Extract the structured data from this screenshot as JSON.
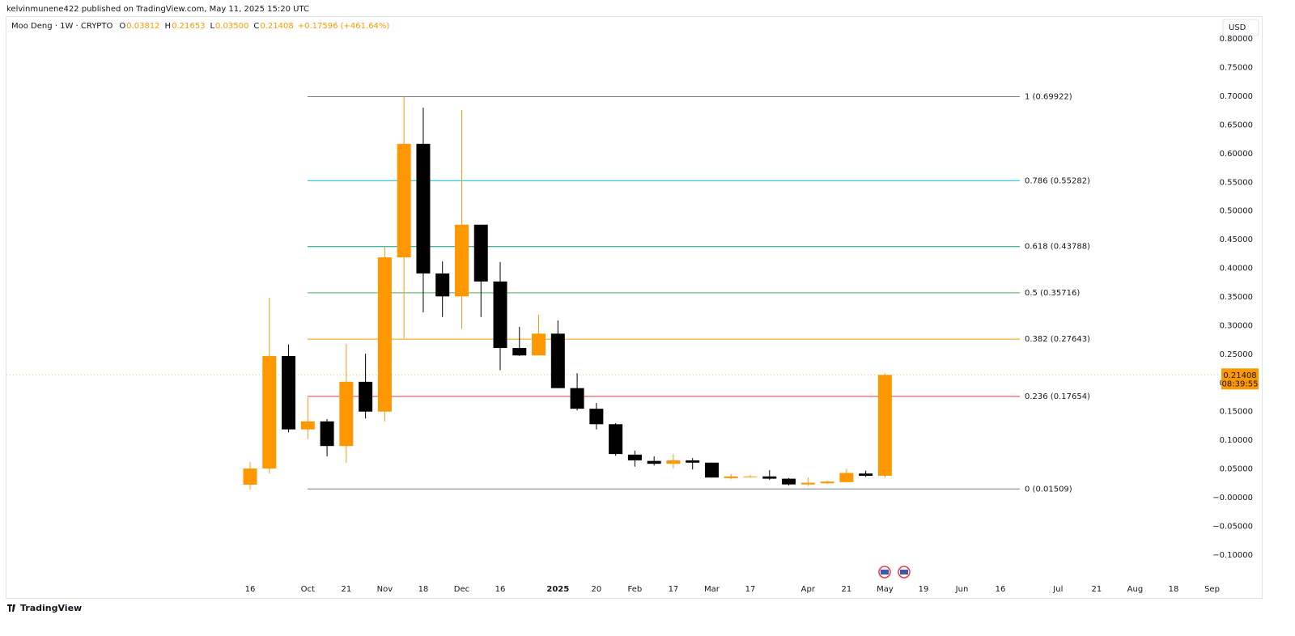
{
  "page": {
    "byline": "kelvinmunene422 published on TradingView.com, May 11, 2025 15:20 UTC",
    "currency_button": "USD",
    "brand": "TradingView"
  },
  "header": {
    "symbol": "Moo Deng · 1W · CRYPTO",
    "ohlc": [
      {
        "key": "O",
        "value": "0.03812"
      },
      {
        "key": "H",
        "value": "0.21653"
      },
      {
        "key": "L",
        "value": "0.03500"
      },
      {
        "key": "C",
        "value": "0.21408"
      }
    ],
    "change": "+0.17596 (+461.64%)"
  },
  "chart_data": {
    "type": "candlestick",
    "categories": [
      "16",
      null,
      null,
      "Oct",
      null,
      "21",
      null,
      "Nov",
      null,
      "18",
      null,
      "Dec",
      null,
      "16",
      null,
      null,
      "2025",
      null,
      "20",
      null,
      "Feb",
      null,
      "17",
      null,
      "Mar",
      null,
      "17",
      null,
      null,
      "Apr",
      null,
      "21",
      null,
      "May",
      null,
      "19",
      null,
      "Jun",
      null,
      "16",
      null,
      null,
      "Jul",
      null,
      "21",
      null,
      "Aug",
      null,
      "18",
      null,
      "Sep"
    ],
    "open": [
      0.0226,
      0.0508,
      0.247,
      0.119,
      0.133,
      0.09,
      0.202,
      0.15,
      0.419,
      0.617,
      0.391,
      0.351,
      0.476,
      0.377,
      0.261,
      0.248,
      0.286,
      0.191,
      0.155,
      0.128,
      0.075,
      0.064,
      0.059,
      0.065,
      0.061,
      0.034,
      0.036,
      0.037,
      0.033,
      0.023,
      0.025,
      0.027,
      0.042,
      0.03812,
      null,
      null,
      null,
      null,
      null,
      null,
      null,
      null,
      null,
      null,
      null,
      null,
      null,
      null,
      null,
      null,
      null
    ],
    "high": [
      0.0621,
      0.349,
      0.267,
      0.175,
      0.137,
      0.268,
      0.251,
      0.437,
      0.699,
      0.68,
      0.412,
      0.676,
      0.476,
      0.411,
      0.298,
      0.319,
      0.309,
      0.217,
      0.165,
      0.13,
      0.082,
      0.072,
      0.076,
      0.069,
      0.061,
      0.041,
      0.039,
      0.048,
      0.034,
      0.035,
      0.03,
      0.05,
      0.047,
      0.21653,
      null,
      null,
      null,
      null,
      null,
      null,
      null,
      null,
      null,
      null,
      null,
      null,
      null,
      null,
      null,
      null,
      null
    ],
    "low": [
      0.014,
      0.042,
      0.114,
      0.102,
      0.072,
      0.061,
      0.138,
      0.133,
      0.278,
      0.323,
      0.315,
      0.294,
      0.315,
      0.222,
      0.247,
      0.248,
      0.191,
      0.152,
      0.119,
      0.073,
      0.054,
      0.056,
      0.051,
      0.049,
      0.035,
      0.032,
      0.035,
      0.031,
      0.021,
      0.02,
      0.024,
      0.027,
      0.036,
      0.035,
      null,
      null,
      null,
      null,
      null,
      null,
      null,
      null,
      null,
      null,
      null,
      null,
      null,
      null,
      null,
      null,
      null
    ],
    "close": [
      0.0508,
      0.247,
      0.119,
      0.133,
      0.09,
      0.202,
      0.15,
      0.419,
      0.617,
      0.391,
      0.351,
      0.476,
      0.377,
      0.261,
      0.248,
      0.286,
      0.191,
      0.155,
      0.128,
      0.076,
      0.065,
      0.059,
      0.065,
      0.061,
      0.035,
      0.037,
      0.037,
      0.033,
      0.023,
      0.026,
      0.028,
      0.043,
      0.038,
      0.21408,
      null,
      null,
      null,
      null,
      null,
      null,
      null,
      null,
      null,
      null,
      null,
      null,
      null,
      null,
      null,
      null,
      null
    ],
    "up_color": "#ff9800",
    "down_color": "#000000",
    "ylim": [
      -0.1454,
      0.8115
    ],
    "yticks": [
      {
        "value": 0.8,
        "label": "0.80000"
      },
      {
        "value": 0.75,
        "label": "0.75000"
      },
      {
        "value": 0.7,
        "label": "0.70000"
      },
      {
        "value": 0.65,
        "label": "0.65000"
      },
      {
        "value": 0.6,
        "label": "0.60000"
      },
      {
        "value": 0.55,
        "label": "0.55000"
      },
      {
        "value": 0.5,
        "label": "0.50000"
      },
      {
        "value": 0.45,
        "label": "0.45000"
      },
      {
        "value": 0.4,
        "label": "0.40000"
      },
      {
        "value": 0.35,
        "label": "0.35000"
      },
      {
        "value": 0.3,
        "label": "0.30000"
      },
      {
        "value": 0.25,
        "label": "0.25000"
      },
      {
        "value": 0.2,
        "label": "0.20000"
      },
      {
        "value": 0.15,
        "label": "0.15000"
      },
      {
        "value": 0.1,
        "label": "0.10000"
      },
      {
        "value": 0.05,
        "label": "0.05000"
      },
      {
        "value": 0,
        "label": "−0.00000"
      },
      {
        "value": -0.05,
        "label": "−0.05000"
      },
      {
        "value": -0.1,
        "label": "−0.10000"
      }
    ],
    "grid": false,
    "fib_levels": [
      {
        "label": "1 (0.69922)",
        "value": 0.69922,
        "color": "#787b86"
      },
      {
        "label": "0.786 (0.55282)",
        "value": 0.55282,
        "color": "#00bcd4"
      },
      {
        "label": "0.618 (0.43788)",
        "value": 0.43788,
        "color": "#089981"
      },
      {
        "label": "0.5 (0.35716)",
        "value": 0.35716,
        "color": "#4caf50"
      },
      {
        "label": "0.382 (0.27643)",
        "value": 0.27643,
        "color": "#ff9800"
      },
      {
        "label": "0.236 (0.17654)",
        "value": 0.17654,
        "color": "#f23645"
      },
      {
        "label": "0 (0.01509)",
        "value": 0.01509,
        "color": "#787b86"
      }
    ],
    "last_price": 0.21408,
    "countdown": "08:39:55"
  }
}
